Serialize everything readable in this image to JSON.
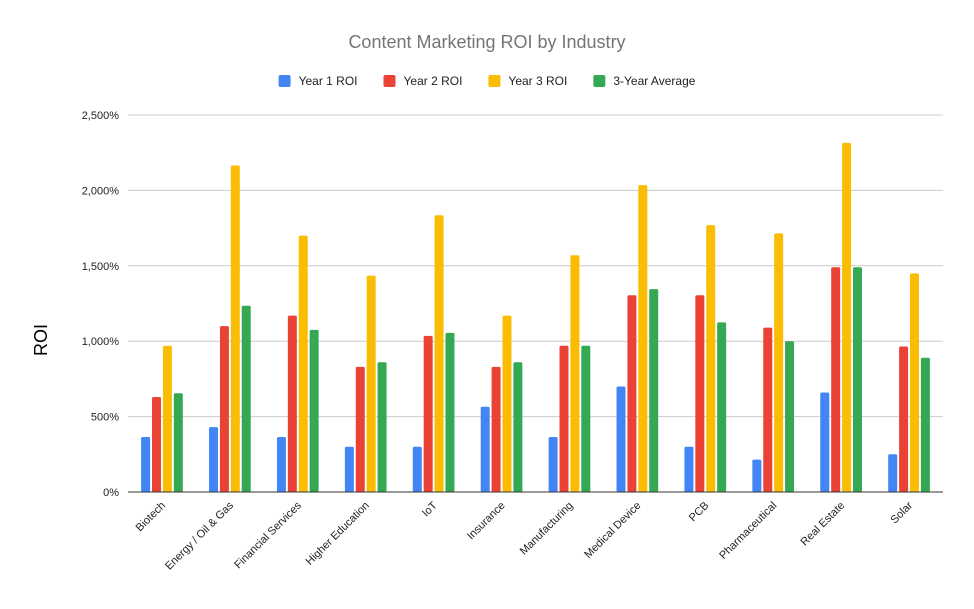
{
  "chart_data": {
    "type": "bar",
    "title": "Content Marketing ROI by Industry",
    "xlabel": "",
    "ylabel": "ROI",
    "ylim": [
      0,
      2500
    ],
    "y_ticks": [
      0,
      500,
      1000,
      1500,
      2000,
      2500
    ],
    "y_tick_labels": [
      "0%",
      "500%",
      "1,000%",
      "1,500%",
      "2,000%",
      "2,500%"
    ],
    "grid": true,
    "legend_position": "top",
    "categories": [
      "Biotech",
      "Energy / Oil & Gas",
      "Financial Services",
      "Higher Education",
      "IoT",
      "Insurance",
      "Manufacturing",
      "Medical Device",
      "PCB",
      "Pharmaceutical",
      "Real Estate",
      "Solar"
    ],
    "series": [
      {
        "name": "Year 1 ROI",
        "color": "#4285f4",
        "values": [
          365,
          430,
          365,
          300,
          300,
          565,
          365,
          700,
          300,
          215,
          660,
          250
        ]
      },
      {
        "name": "Year 2 ROI",
        "color": "#ea4335",
        "values": [
          630,
          1100,
          1170,
          830,
          1035,
          830,
          970,
          1305,
          1305,
          1090,
          1490,
          965
        ]
      },
      {
        "name": "Year 3 ROI",
        "color": "#fbbc04",
        "values": [
          970,
          2165,
          1700,
          1435,
          1835,
          1170,
          1570,
          2035,
          1770,
          1715,
          2315,
          1450
        ]
      },
      {
        "name": "3-Year Average",
        "color": "#34a853",
        "values": [
          655,
          1235,
          1075,
          860,
          1055,
          860,
          970,
          1345,
          1125,
          1000,
          1490,
          890
        ]
      }
    ]
  }
}
